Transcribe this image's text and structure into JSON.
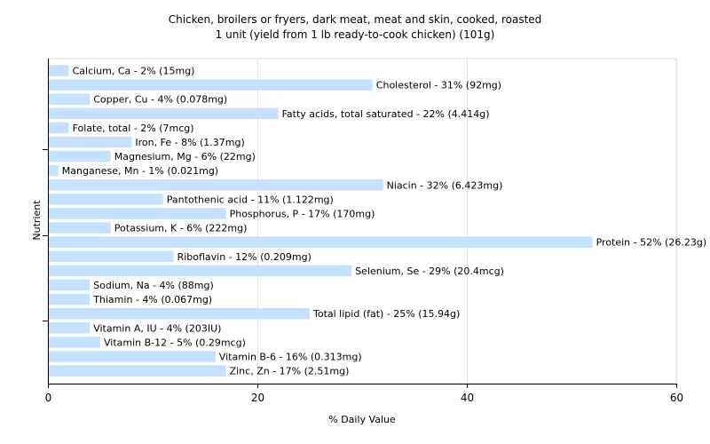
{
  "chart_data": {
    "type": "bar",
    "orientation": "horizontal",
    "title": "Chicken, broilers or fryers, dark meat, meat and skin, cooked, roasted",
    "subtitle": "1 unit (yield from 1 lb ready-to-cook chicken) (101g)",
    "xlabel": "% Daily Value",
    "ylabel": "Nutrient",
    "xlim": [
      0,
      60
    ],
    "xticks": [
      "0",
      "20",
      "40",
      "60"
    ],
    "grid": true,
    "bar_color": "#c6e0ff",
    "categories": [
      "Calcium, Ca",
      "Cholesterol",
      "Copper, Cu",
      "Fatty acids, total saturated",
      "Folate, total",
      "Iron, Fe",
      "Magnesium, Mg",
      "Manganese, Mn",
      "Niacin",
      "Pantothenic acid",
      "Phosphorus, P",
      "Potassium, K",
      "Protein",
      "Riboflavin",
      "Selenium, Se",
      "Sodium, Na",
      "Thiamin",
      "Total lipid (fat)",
      "Vitamin A, IU",
      "Vitamin B-12",
      "Vitamin B-6",
      "Zinc, Zn"
    ],
    "values": [
      2,
      31,
      4,
      22,
      2,
      8,
      6,
      1,
      32,
      11,
      17,
      6,
      52,
      12,
      29,
      4,
      4,
      25,
      4,
      5,
      16,
      17
    ],
    "labels": [
      "Calcium, Ca - 2% (15mg)",
      "Cholesterol - 31% (92mg)",
      "Copper, Cu - 4% (0.078mg)",
      "Fatty acids, total saturated - 22% (4.414g)",
      "Folate, total - 2% (7mcg)",
      "Iron, Fe - 8% (1.37mg)",
      "Magnesium, Mg - 6% (22mg)",
      "Manganese, Mn - 1% (0.021mg)",
      "Niacin - 32% (6.423mg)",
      "Pantothenic acid - 11% (1.122mg)",
      "Phosphorus, P - 17% (170mg)",
      "Potassium, K - 6% (222mg)",
      "Protein - 52% (26.23g)",
      "Riboflavin - 12% (0.209mg)",
      "Selenium, Se - 29% (20.4mcg)",
      "Sodium, Na - 4% (88mg)",
      "Thiamin - 4% (0.067mg)",
      "Total lipid (fat) - 25% (15.94g)",
      "Vitamin A, IU - 4% (203IU)",
      "Vitamin B-12 - 5% (0.29mcg)",
      "Vitamin B-6 - 16% (0.313mg)",
      "Zinc, Zn - 17% (2.51mg)"
    ]
  }
}
